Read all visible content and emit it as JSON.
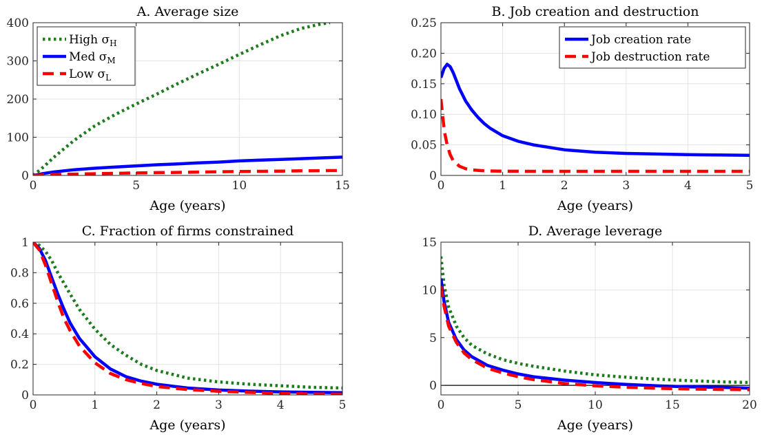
{
  "chart_data": [
    {
      "id": "A",
      "type": "line",
      "title": "A. Average size",
      "xlabel": "Age (years)",
      "xlim": [
        0,
        15
      ],
      "ylim": [
        0,
        400
      ],
      "xticks": [
        0,
        5,
        10,
        15
      ],
      "yticks": [
        0,
        100,
        200,
        300,
        400
      ],
      "ytick_labels": [
        "0",
        "100",
        "200",
        "300",
        "400"
      ],
      "legend": "top-left",
      "series": [
        {
          "name": "High σH",
          "label_main": "High σ",
          "label_sub": "H",
          "color": "#1e7b1e",
          "style": "dotted",
          "x": [
            0,
            0.5,
            1,
            1.5,
            2,
            3,
            4,
            5,
            6,
            7,
            8,
            9,
            10,
            11,
            12,
            13,
            14,
            14.4
          ],
          "y": [
            0,
            22,
            47,
            70,
            92,
            130,
            160,
            187,
            213,
            240,
            266,
            291,
            317,
            342,
            366,
            385,
            397,
            400
          ]
        },
        {
          "name": "Med σM",
          "label_main": "Med σ",
          "label_sub": "M",
          "color": "#0000ff",
          "style": "solid",
          "x": [
            0,
            0.5,
            1,
            1.5,
            2,
            3,
            4,
            5,
            6,
            7,
            8,
            9,
            10,
            11,
            12,
            13,
            14,
            15
          ],
          "y": [
            0,
            5,
            9,
            12,
            15,
            19,
            22,
            25,
            28,
            30,
            33,
            35,
            38,
            40,
            42,
            44,
            46,
            48
          ]
        },
        {
          "name": "Low σL",
          "label_main": "Low σ",
          "label_sub": "L",
          "color": "#ff0000",
          "style": "dashed",
          "x": [
            0,
            1,
            2,
            3,
            4,
            5,
            6,
            7,
            8,
            9,
            10,
            11,
            12,
            13,
            14,
            15
          ],
          "y": [
            0,
            2.5,
            3.5,
            4.5,
            5.5,
            6.5,
            7.3,
            8,
            8.8,
            9.5,
            10.2,
            10.8,
            11.4,
            12,
            12.5,
            13
          ]
        }
      ]
    },
    {
      "id": "B",
      "type": "line",
      "title": "B. Job creation and destruction",
      "xlabel": "Age (years)",
      "xlim": [
        0,
        5
      ],
      "ylim": [
        0,
        0.25
      ],
      "xticks": [
        0,
        1,
        2,
        3,
        4,
        5
      ],
      "yticks": [
        0,
        0.05,
        0.1,
        0.15,
        0.2,
        0.25
      ],
      "ytick_labels": [
        "0",
        "0.05",
        "0.10",
        "0.15",
        "0.20",
        "0.25"
      ],
      "legend": "top-right",
      "series": [
        {
          "name": "Job creation rate",
          "color": "#0000ff",
          "style": "solid",
          "x": [
            0,
            0.05,
            0.1,
            0.15,
            0.2,
            0.3,
            0.4,
            0.5,
            0.6,
            0.7,
            0.8,
            1.0,
            1.25,
            1.5,
            2,
            2.5,
            3,
            3.5,
            4,
            4.5,
            5
          ],
          "y": [
            0.16,
            0.175,
            0.182,
            0.178,
            0.168,
            0.142,
            0.122,
            0.107,
            0.095,
            0.085,
            0.077,
            0.065,
            0.056,
            0.05,
            0.042,
            0.038,
            0.036,
            0.035,
            0.034,
            0.0335,
            0.033
          ]
        },
        {
          "name": "Job destruction rate",
          "color": "#ff0000",
          "style": "dashed",
          "x": [
            0,
            0.03,
            0.06,
            0.1,
            0.15,
            0.2,
            0.3,
            0.4,
            0.5,
            0.7,
            1,
            1.5,
            2,
            3,
            4,
            5
          ],
          "y": [
            0.125,
            0.095,
            0.07,
            0.05,
            0.034,
            0.024,
            0.015,
            0.011,
            0.009,
            0.0075,
            0.007,
            0.0068,
            0.0068,
            0.0068,
            0.0068,
            0.0068
          ]
        }
      ]
    },
    {
      "id": "C",
      "type": "line",
      "title": "C. Fraction of firms constrained",
      "xlabel": "Age (years)",
      "xlim": [
        0,
        5
      ],
      "ylim": [
        0,
        1
      ],
      "xticks": [
        0,
        1,
        2,
        3,
        4,
        5
      ],
      "yticks": [
        0,
        0.2,
        0.4,
        0.6,
        0.8,
        1
      ],
      "ytick_labels": [
        "0",
        "0.2",
        "0.4",
        "0.6",
        "0.8",
        "1"
      ],
      "legend": "none",
      "series": [
        {
          "name": "High σH",
          "color": "#1e7b1e",
          "style": "dotted",
          "x": [
            0,
            0.1,
            0.2,
            0.3,
            0.4,
            0.5,
            0.6,
            0.75,
            1,
            1.25,
            1.5,
            1.75,
            2,
            2.5,
            3,
            3.5,
            4,
            4.5,
            5
          ],
          "y": [
            1,
            0.98,
            0.94,
            0.88,
            0.8,
            0.73,
            0.66,
            0.56,
            0.43,
            0.33,
            0.26,
            0.2,
            0.16,
            0.11,
            0.085,
            0.07,
            0.06,
            0.05,
            0.045
          ]
        },
        {
          "name": "Med σM",
          "color": "#0000ff",
          "style": "solid",
          "x": [
            0,
            0.1,
            0.2,
            0.3,
            0.4,
            0.5,
            0.6,
            0.75,
            1,
            1.25,
            1.5,
            1.75,
            2,
            2.5,
            3,
            3.5,
            4,
            4.5,
            5
          ],
          "y": [
            1,
            0.96,
            0.88,
            0.77,
            0.66,
            0.56,
            0.47,
            0.37,
            0.25,
            0.17,
            0.12,
            0.09,
            0.07,
            0.045,
            0.032,
            0.025,
            0.02,
            0.017,
            0.015
          ]
        },
        {
          "name": "Low σL",
          "color": "#ff0000",
          "style": "dashed",
          "x": [
            0,
            0.1,
            0.2,
            0.3,
            0.4,
            0.5,
            0.6,
            0.75,
            1,
            1.25,
            1.5,
            1.75,
            2,
            2.5,
            3,
            3.5,
            4,
            4.5,
            5
          ],
          "y": [
            1,
            0.95,
            0.85,
            0.73,
            0.61,
            0.5,
            0.42,
            0.32,
            0.21,
            0.14,
            0.1,
            0.075,
            0.055,
            0.035,
            0.024,
            0.016,
            0.01,
            0.006,
            0.005
          ]
        }
      ]
    },
    {
      "id": "D",
      "type": "line",
      "title": "D. Average leverage",
      "xlabel": "Age (years)",
      "xlim": [
        0,
        20
      ],
      "ylim": [
        -1,
        15
      ],
      "xticks": [
        0,
        5,
        10,
        15,
        20
      ],
      "yticks": [
        0,
        5,
        10,
        15
      ],
      "ytick_labels": [
        "0",
        "5",
        "10",
        "15"
      ],
      "legend": "none",
      "zero_line": true,
      "series": [
        {
          "name": "High σH",
          "color": "#1e7b1e",
          "style": "dotted",
          "x": [
            0,
            0.2,
            0.5,
            1,
            1.5,
            2,
            3,
            4,
            5,
            6,
            8,
            10,
            12,
            14,
            16,
            18,
            20
          ],
          "y": [
            13.5,
            10.5,
            8.2,
            6.2,
            5,
            4.2,
            3.3,
            2.7,
            2.3,
            2,
            1.5,
            1.1,
            0.85,
            0.65,
            0.5,
            0.38,
            0.3
          ]
        },
        {
          "name": "Med σM",
          "color": "#0000ff",
          "style": "solid",
          "x": [
            0,
            0.2,
            0.5,
            1,
            1.5,
            2,
            3,
            4,
            5,
            6,
            8,
            10,
            12,
            14,
            16,
            18,
            20
          ],
          "y": [
            11.2,
            8.8,
            6.6,
            4.8,
            3.7,
            3,
            2.1,
            1.6,
            1.2,
            0.9,
            0.55,
            0.3,
            0.1,
            -0.05,
            -0.15,
            -0.2,
            -0.3
          ]
        },
        {
          "name": "Low σL",
          "color": "#ff0000",
          "style": "dashed",
          "x": [
            0,
            0.2,
            0.5,
            1,
            1.5,
            2,
            3,
            4,
            5,
            6,
            8,
            10,
            12,
            14,
            16,
            18,
            20
          ],
          "y": [
            10.4,
            8.3,
            6.2,
            4.5,
            3.4,
            2.7,
            1.8,
            1.3,
            0.9,
            0.6,
            0.2,
            -0.05,
            -0.2,
            -0.3,
            -0.38,
            -0.42,
            -0.45
          ]
        }
      ]
    }
  ]
}
